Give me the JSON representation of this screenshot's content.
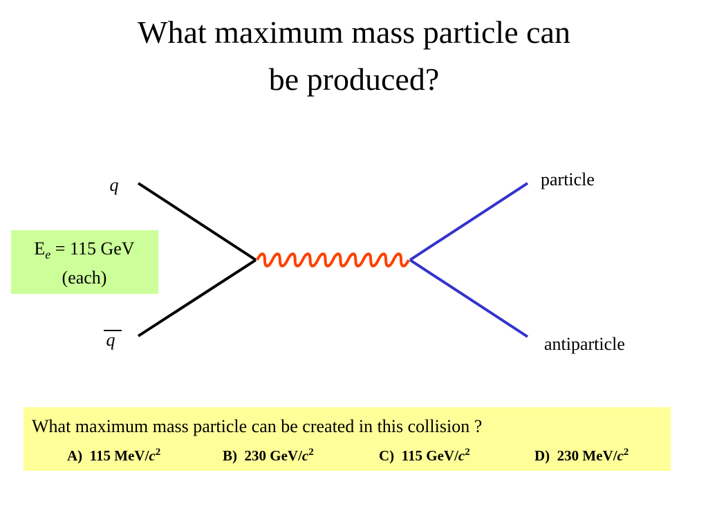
{
  "title": {
    "lines": [
      "What maximum mass particle can",
      "be produced?"
    ]
  },
  "diagram": {
    "quark": "q",
    "antiquark": "q",
    "particle": "particle",
    "antiparticle": "antiparticle",
    "energy_box": {
      "symbol": "E",
      "subscript": "e",
      "value": "= 115 GeV",
      "note": "(each)"
    }
  },
  "question": {
    "text": "What maximum mass particle can be created in this collision ?",
    "options": [
      {
        "label": "A)",
        "value": "115 MeV/",
        "unit": "c",
        "power": "2"
      },
      {
        "label": "B)",
        "value": "230 GeV/",
        "unit": "c",
        "power": "2"
      },
      {
        "label": "C)",
        "value": "115 GeV/",
        "unit": "c",
        "power": "2"
      },
      {
        "label": "D)",
        "value": "230 MeV/",
        "unit": "c",
        "power": "2"
      }
    ]
  }
}
